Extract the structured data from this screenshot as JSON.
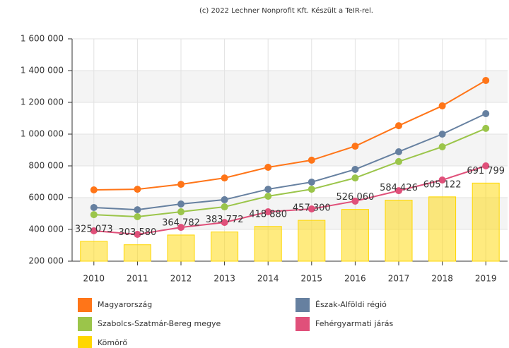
{
  "chart_data": {
    "type": "combo",
    "note": "(c) 2022 Lechner Nonprofit Kft. Készült a TeIR-rel.",
    "categories": [
      "2010",
      "2011",
      "2012",
      "2013",
      "2014",
      "2015",
      "2016",
      "2017",
      "2018",
      "2019"
    ],
    "ylim": [
      200000,
      1600000
    ],
    "yticks": [
      {
        "value": 200000,
        "label": "200 000"
      },
      {
        "value": 400000,
        "label": "400 000"
      },
      {
        "value": 600000,
        "label": "600 000"
      },
      {
        "value": 800000,
        "label": "800 000"
      },
      {
        "value": 1000000,
        "label": "1 000 000"
      },
      {
        "value": 1200000,
        "label": "1 200 000"
      },
      {
        "value": 1400000,
        "label": "1 400 000"
      },
      {
        "value": 1600000,
        "label": "1 600 000"
      }
    ],
    "grid": true,
    "legend": "bottom",
    "series": [
      {
        "name": "Magyarország",
        "type": "line",
        "color": "#ff7518",
        "values": [
          649000,
          653000,
          684000,
          724000,
          791000,
          836000,
          924000,
          1053000,
          1178000,
          1338000
        ]
      },
      {
        "name": "Észak-Alföldi régió",
        "type": "line",
        "color": "#6680a0",
        "values": [
          538000,
          524000,
          560000,
          587000,
          653000,
          698000,
          778000,
          889000,
          1000000,
          1129000
        ]
      },
      {
        "name": "Szabolcs-Szatmár-Bereg megye",
        "type": "line",
        "color": "#9bc54a",
        "values": [
          493000,
          480000,
          511000,
          542000,
          609000,
          653000,
          724000,
          827000,
          920000,
          1036000
        ]
      },
      {
        "name": "Fehérgyarmati járás",
        "type": "line",
        "color": "#e0507a",
        "values": [
          391000,
          369000,
          413000,
          444000,
          511000,
          529000,
          578000,
          644000,
          711000,
          800000
        ]
      },
      {
        "name": "Kömörő",
        "type": "bar",
        "color": "#ffd700",
        "values": [
          325073,
          303580,
          364782,
          383772,
          418880,
          457300,
          526060,
          584426,
          605122,
          691799
        ],
        "value_labels": [
          "325 073",
          "303 580",
          "364 782",
          "383 772",
          "418 880",
          "457 300",
          "526 060",
          "584 426",
          "605 122",
          "691 799"
        ]
      }
    ]
  }
}
